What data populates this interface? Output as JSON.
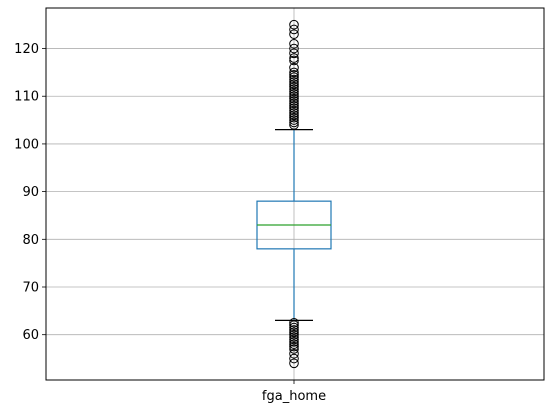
{
  "chart_data": {
    "type": "box",
    "title": "",
    "xlabel": "",
    "ylabel": "",
    "categories": [
      "fga_home"
    ],
    "ylim": [
      50.5,
      128.5
    ],
    "yticks": [
      60,
      70,
      80,
      90,
      100,
      110,
      120
    ],
    "grid": true,
    "box": {
      "q1": 78,
      "median": 83,
      "q3": 88,
      "whisker_low": 63,
      "whisker_high": 103
    },
    "outliers_high": [
      104,
      104.5,
      105,
      105.5,
      106,
      106.5,
      107,
      107.5,
      108,
      108.5,
      109,
      109.5,
      110,
      110.5,
      111,
      111.5,
      112,
      112.5,
      113,
      113.5,
      114,
      114.5,
      115,
      116,
      117.5,
      118,
      119,
      120,
      121,
      123,
      124,
      125
    ],
    "outliers_low": [
      54,
      55,
      56,
      57,
      57.5,
      58,
      58.5,
      59,
      59.5,
      60,
      60.5,
      61,
      61.5,
      62,
      62.5
    ],
    "colors": {
      "box": "#1f77b4",
      "median": "#2ca02c",
      "whisker_cap": "#000000",
      "outlier": "#000000",
      "grid": "#b0b0b0",
      "axes": "#000000"
    }
  }
}
